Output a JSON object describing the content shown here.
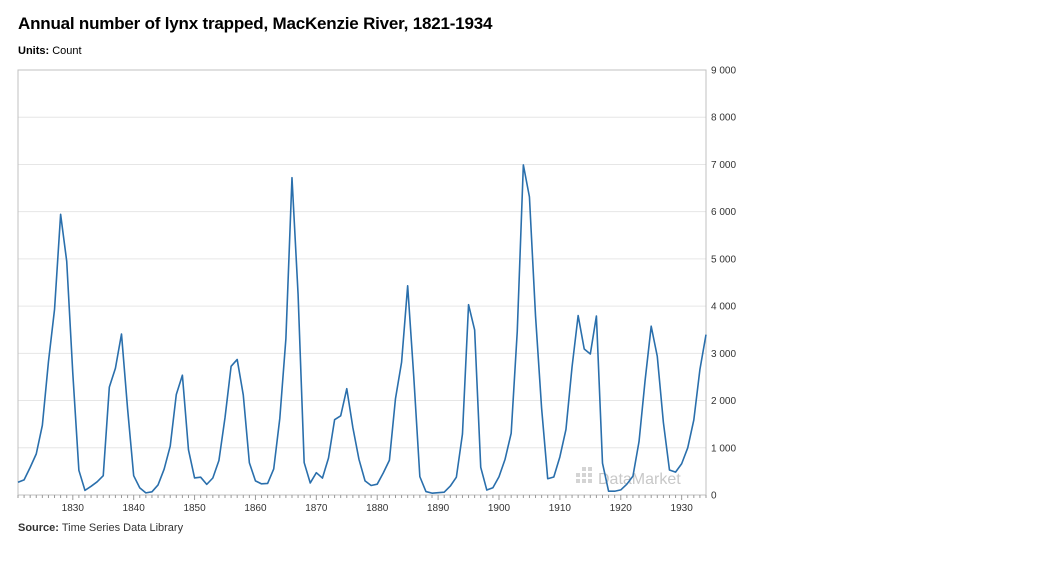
{
  "header": {
    "title": "Annual number of lynx trapped, MacKenzie River, 1821-1934",
    "units_label": "Units:",
    "units_value": "Count"
  },
  "footer": {
    "source_label": "Source:",
    "source_value": "Time Series Data Library"
  },
  "watermark": "DataMarket",
  "colors": {
    "line": "#2a6fac",
    "grid": "#e6e6e6",
    "axis": "#c0c0c0"
  },
  "chart_data": {
    "type": "line",
    "title": "Annual number of lynx trapped, MacKenzie River, 1821-1934",
    "xlabel": "",
    "ylabel": "",
    "xlim": [
      1821,
      1934
    ],
    "ylim": [
      0,
      9000
    ],
    "x_ticks": [
      1830,
      1840,
      1850,
      1860,
      1870,
      1880,
      1890,
      1900,
      1910,
      1920,
      1930
    ],
    "y_ticks": [
      0,
      1000,
      2000,
      3000,
      4000,
      5000,
      6000,
      7000,
      8000,
      9000
    ],
    "y_tick_labels": [
      "0",
      "1 000",
      "2 000",
      "3 000",
      "4 000",
      "5 000",
      "6 000",
      "7 000",
      "8 000",
      "9 000"
    ],
    "grid": true,
    "series": [
      {
        "x": [
          1821,
          1822,
          1823,
          1824,
          1825,
          1826,
          1827,
          1828,
          1829,
          1830,
          1831,
          1832,
          1833,
          1834,
          1835,
          1836,
          1837,
          1838,
          1839,
          1840,
          1841,
          1842,
          1843,
          1844,
          1845,
          1846,
          1847,
          1848,
          1849,
          1850,
          1851,
          1852,
          1853,
          1854,
          1855,
          1856,
          1857,
          1858,
          1859,
          1860,
          1861,
          1862,
          1863,
          1864,
          1865,
          1866,
          1867,
          1868,
          1869,
          1870,
          1871,
          1872,
          1873,
          1874,
          1875,
          1876,
          1877,
          1878,
          1879,
          1880,
          1881,
          1882,
          1883,
          1884,
          1885,
          1886,
          1887,
          1888,
          1889,
          1890,
          1891,
          1892,
          1893,
          1894,
          1895,
          1896,
          1897,
          1898,
          1899,
          1900,
          1901,
          1902,
          1903,
          1904,
          1905,
          1906,
          1907,
          1908,
          1909,
          1910,
          1911,
          1912,
          1913,
          1914,
          1915,
          1916,
          1917,
          1918,
          1919,
          1920,
          1921,
          1922,
          1923,
          1924,
          1925,
          1926,
          1927,
          1928,
          1929,
          1930,
          1931,
          1932,
          1933,
          1934
        ],
        "values": [
          269,
          321,
          585,
          871,
          1475,
          2821,
          3928,
          5943,
          4950,
          2577,
          523,
          98,
          184,
          279,
          409,
          2285,
          2685,
          3409,
          1824,
          409,
          151,
          45,
          68,
          213,
          546,
          1033,
          2129,
          2536,
          957,
          361,
          377,
          225,
          360,
          731,
          1638,
          2725,
          2871,
          2119,
          684,
          299,
          236,
          245,
          552,
          1623,
          3311,
          6721,
          4254,
          687,
          255,
          473,
          358,
          784,
          1594,
          1676,
          2251,
          1426,
          756,
          299,
          201,
          229,
          469,
          736,
          2042,
          2811,
          4431,
          2511,
          389,
          73,
          39,
          49,
          59,
          188,
          377,
          1292,
          4031,
          3495,
          587,
          105,
          153,
          387,
          758,
          1307,
          3465,
          6991,
          6313,
          3794,
          1836,
          345,
          382,
          808,
          1388,
          2713,
          3800,
          3091,
          2985,
          3790,
          674,
          81,
          80,
          108,
          229,
          399,
          1132,
          2432,
          3574,
          2935,
          1537,
          529,
          485,
          662,
          1000,
          1590,
          2657,
          3396
        ]
      }
    ]
  }
}
